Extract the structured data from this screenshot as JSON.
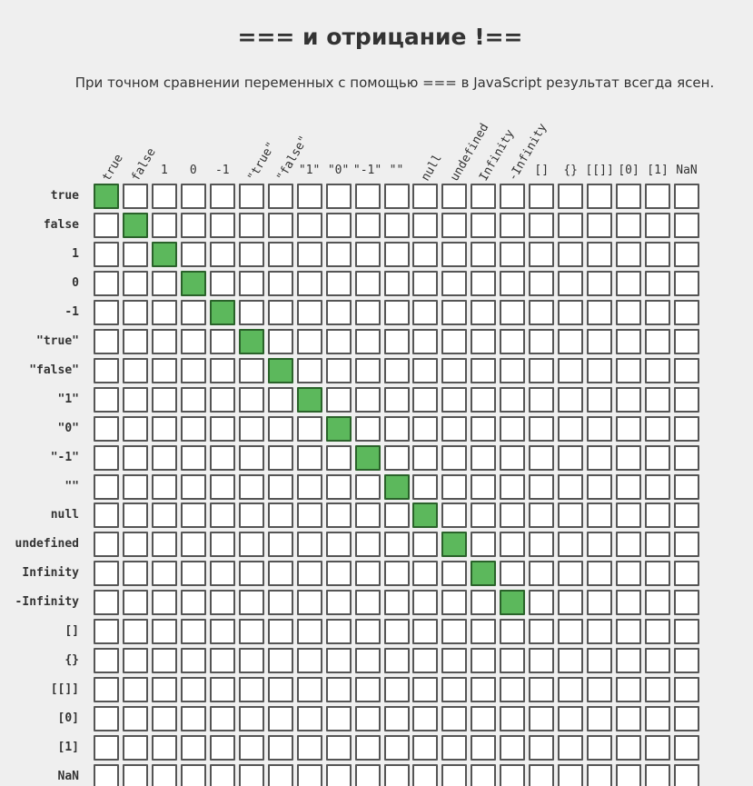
{
  "page": {
    "title": "=== и отрицание !==",
    "subtitle": "При точном сравнении переменных с помощью === в JavaScript результат всегда ясен."
  },
  "matrix": {
    "headers": [
      "true",
      "false",
      "1",
      "0",
      "-1",
      "\"true\"",
      "\"false\"",
      "\"1\"",
      "\"0\"",
      "\"-1\"",
      "\"\"",
      "null",
      "undefined",
      "Infinity",
      "-Infinity",
      "[]",
      "{}",
      "[[]]",
      "[0]",
      "[1]",
      "NaN"
    ],
    "rotated_headers": [
      true,
      true,
      false,
      false,
      false,
      true,
      true,
      false,
      false,
      false,
      false,
      true,
      true,
      true,
      true,
      false,
      false,
      false,
      false,
      false,
      false
    ],
    "equal_color": "#5cb85c",
    "equal_border_color": "#2a622a",
    "not_equal_color": "#ffffff",
    "equal_pairs": [
      [
        0,
        0
      ],
      [
        1,
        1
      ],
      [
        2,
        2
      ],
      [
        3,
        3
      ],
      [
        4,
        4
      ],
      [
        5,
        5
      ],
      [
        6,
        6
      ],
      [
        7,
        7
      ],
      [
        8,
        8
      ],
      [
        9,
        9
      ],
      [
        10,
        10
      ],
      [
        11,
        11
      ],
      [
        12,
        12
      ],
      [
        13,
        13
      ],
      [
        14,
        14
      ]
    ]
  }
}
